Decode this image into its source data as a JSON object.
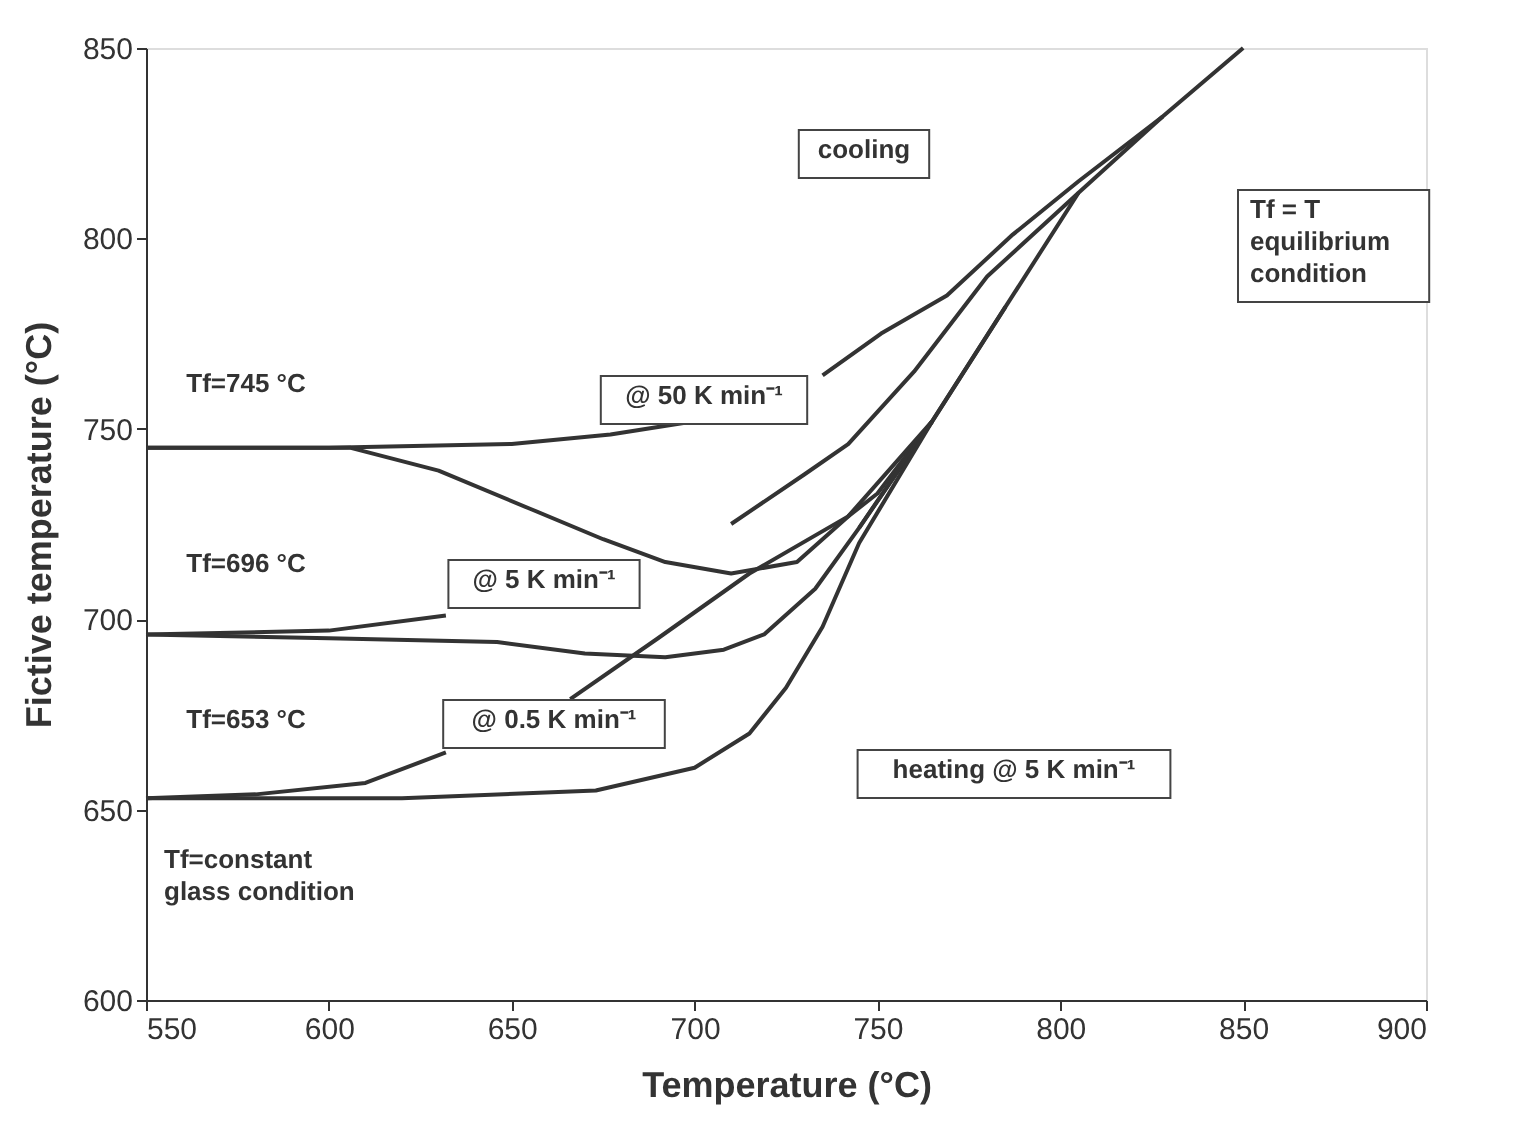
{
  "chart_data": {
    "type": "line",
    "xlabel": "Temperature (°C)",
    "ylabel": "Fictive temperature (°C)",
    "xlim": [
      550,
      900
    ],
    "xticks": [
      550,
      600,
      650,
      700,
      750,
      800,
      850,
      900
    ],
    "ylim": [
      600,
      850
    ],
    "yticks": [
      600,
      650,
      700,
      750,
      800,
      850
    ],
    "grid": false,
    "marker": "none",
    "line_style": "solid",
    "series": [
      {
        "color": "#333333",
        "x": [
          745,
          765,
          785,
          805,
          828,
          850
        ],
        "values": [
          724,
          752,
          782,
          812,
          832,
          850
        ]
      },
      {
        "color": "#333333",
        "x": [
          550,
          600,
          650,
          677,
          700,
          720,
          735,
          751,
          769,
          787,
          805,
          828
        ],
        "values": [
          745,
          745,
          746,
          748.5,
          752,
          null,
          764,
          775,
          785,
          801,
          815,
          832
        ]
      },
      {
        "color": "#333333",
        "x": [
          550,
          600,
          632,
          660,
          684,
          710,
          730,
          742,
          760,
          780,
          805
        ],
        "values": [
          696,
          697,
          701,
          null,
          null,
          725,
          738,
          746,
          765,
          790,
          812
        ]
      },
      {
        "color": "#333333",
        "x": [
          550,
          580,
          610,
          632,
          650,
          666,
          690,
          715,
          742,
          765,
          785
        ],
        "values": [
          653,
          654,
          657,
          665,
          null,
          679,
          695,
          712,
          727,
          752,
          782
        ]
      },
      {
        "color": "#333333",
        "x": [
          550,
          606,
          630,
          655,
          675,
          692,
          710,
          728,
          742,
          750,
          765
        ],
        "values": [
          745,
          745,
          739,
          729,
          721,
          715,
          712,
          715,
          727,
          733,
          752
        ]
      },
      {
        "color": "#333333",
        "x": [
          550,
          600,
          646,
          670,
          692,
          708,
          719,
          733,
          745,
          765
        ],
        "values": [
          696,
          695,
          694,
          691,
          690,
          692,
          696,
          708,
          724,
          752
        ]
      },
      {
        "color": "#333333",
        "x": [
          550,
          620,
          673,
          700,
          715,
          725,
          735,
          745,
          765
        ],
        "values": [
          653,
          653,
          655,
          661,
          670,
          682,
          698,
          720,
          752
        ]
      }
    ],
    "annotations": [
      "cooling",
      "Tf = T\nequilibrium\ncondition",
      "@ 50 K min⁻¹",
      "@ 5 K min⁻¹",
      "@ 0.5 K min⁻¹",
      "heating @ 5 K min⁻¹",
      "Tf=745 °C",
      "Tf=696 °C",
      "Tf=653 °C",
      "Tf=constant\nglass condition"
    ]
  }
}
